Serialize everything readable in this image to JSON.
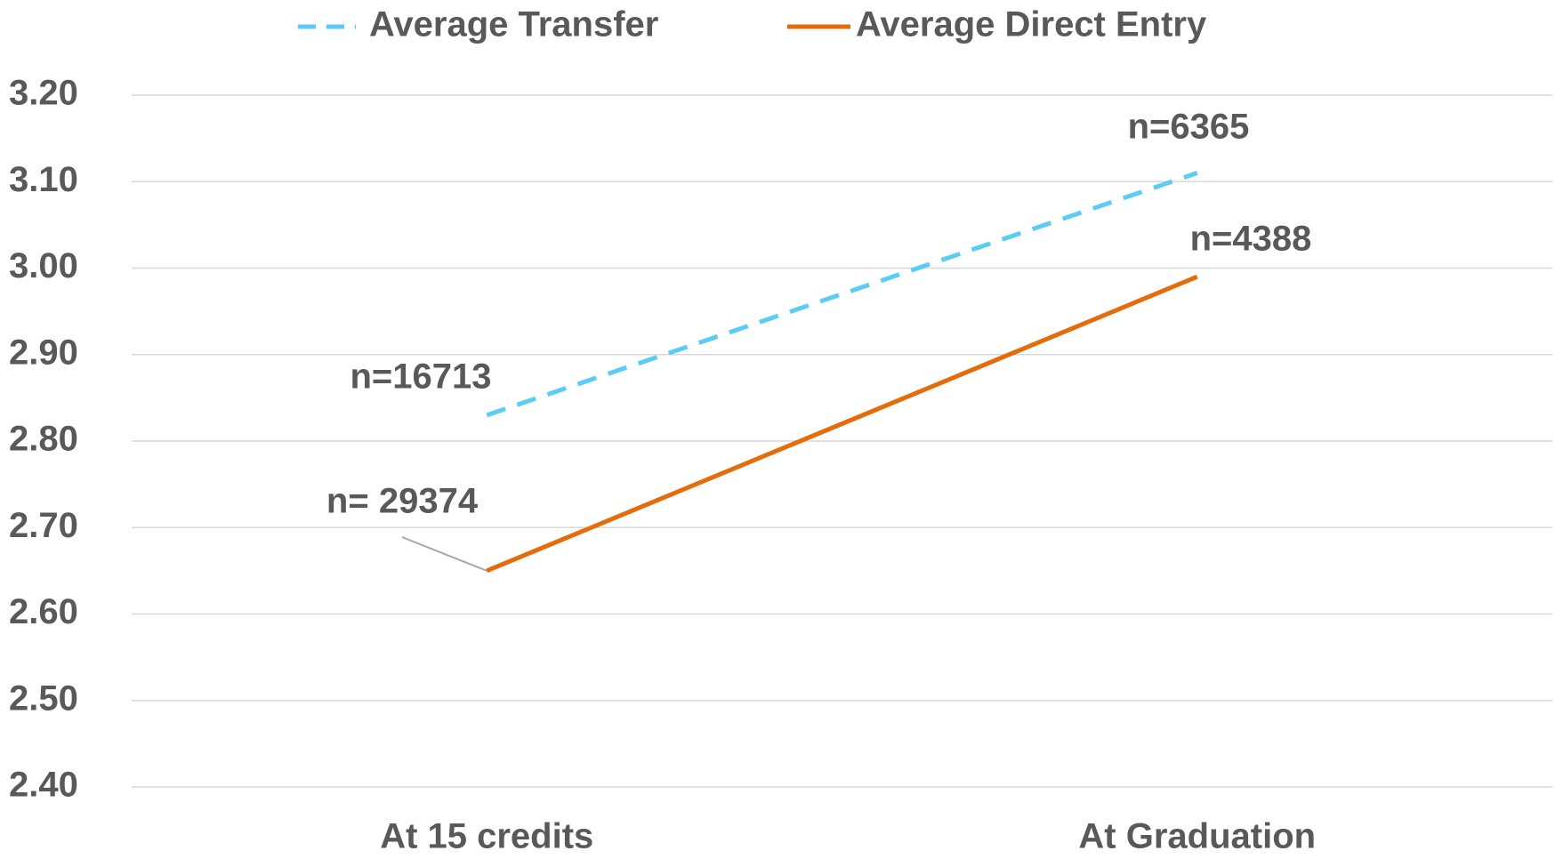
{
  "chart_data": {
    "type": "line",
    "categories": [
      "At 15 credits",
      "At Graduation"
    ],
    "series": [
      {
        "name": "Average Transfer",
        "color": "#5bcdf5",
        "values": [
          2.83,
          3.11
        ],
        "dashed": true
      },
      {
        "name": "Average Direct Entry",
        "color": "#e46c0a",
        "values": [
          2.65,
          2.99
        ],
        "dashed": false
      }
    ],
    "ylim": [
      2.4,
      3.2
    ],
    "yticks": [
      {
        "value": 2.4,
        "label": "2.40"
      },
      {
        "value": 2.5,
        "label": "2.50"
      },
      {
        "value": 2.6,
        "label": "2.60"
      },
      {
        "value": 2.7,
        "label": "2.70"
      },
      {
        "value": 2.8,
        "label": "2.80"
      },
      {
        "value": 2.9,
        "label": "2.90"
      },
      {
        "value": 3.0,
        "label": "3.00"
      },
      {
        "value": 3.1,
        "label": "3.10"
      },
      {
        "value": 3.2,
        "label": "3.20"
      }
    ],
    "grid": true,
    "legend": "top",
    "annotations": [
      "n=16713",
      "n=6365",
      "n= 29374",
      "n=4388"
    ]
  }
}
